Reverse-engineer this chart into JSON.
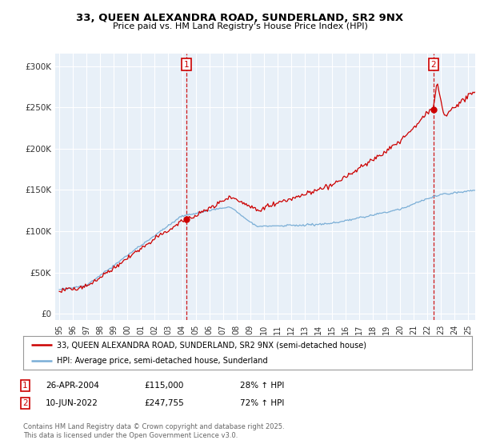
{
  "title": "33, QUEEN ALEXANDRA ROAD, SUNDERLAND, SR2 9NX",
  "subtitle": "Price paid vs. HM Land Registry's House Price Index (HPI)",
  "yticks": [
    0,
    50000,
    100000,
    150000,
    200000,
    250000,
    300000
  ],
  "ytick_labels": [
    "£0",
    "£50K",
    "£100K",
    "£150K",
    "£200K",
    "£250K",
    "£300K"
  ],
  "xlim_start": 1994.7,
  "xlim_end": 2025.5,
  "ylim": [
    -8000,
    315000
  ],
  "marker1_x": 2004.32,
  "marker1_y": 115000,
  "marker2_x": 2022.44,
  "marker2_y": 247755,
  "legend_line1": "33, QUEEN ALEXANDRA ROAD, SUNDERLAND, SR2 9NX (semi-detached house)",
  "legend_line2": "HPI: Average price, semi-detached house, Sunderland",
  "note1_date": "26-APR-2004",
  "note1_price": "£115,000",
  "note1_hpi": "28% ↑ HPI",
  "note2_date": "10-JUN-2022",
  "note2_price": "£247,755",
  "note2_hpi": "72% ↑ HPI",
  "copyright": "Contains HM Land Registry data © Crown copyright and database right 2025.\nThis data is licensed under the Open Government Licence v3.0.",
  "line_color_red": "#cc0000",
  "line_color_blue": "#7aaed6",
  "chart_bg": "#e8f0f8",
  "grid_color": "#ffffff",
  "fig_bg": "#ffffff",
  "vline_color": "#cc0000",
  "marker_box_color": "#cc0000",
  "title_fontsize": 9.5,
  "subtitle_fontsize": 8
}
